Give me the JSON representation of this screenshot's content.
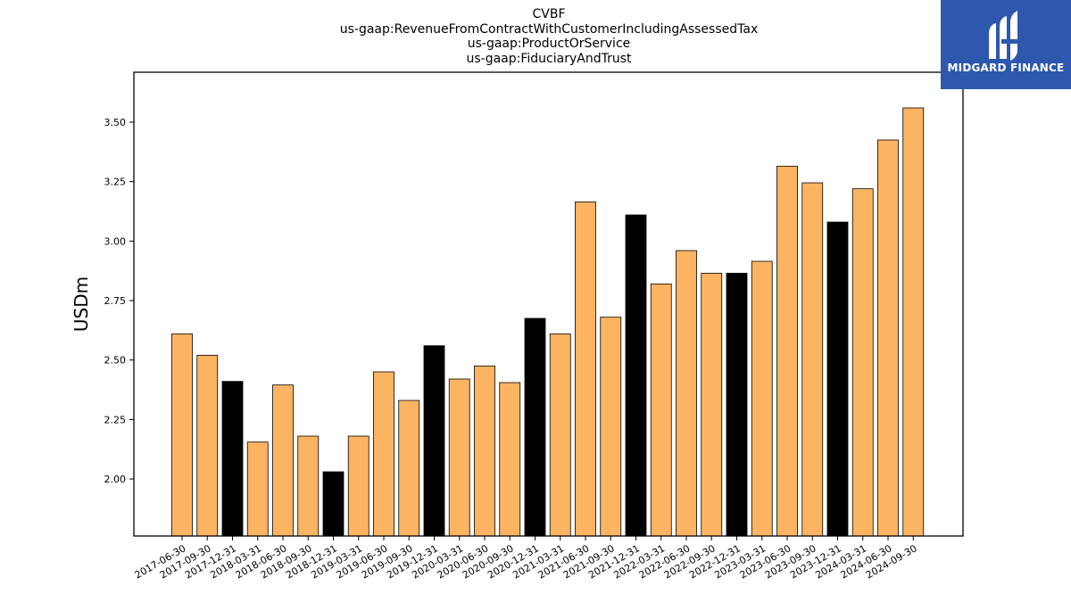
{
  "logo": {
    "text": "MIDGARD FINANCE",
    "background": "#2d58ad"
  },
  "chart_data": {
    "type": "bar",
    "title_lines": [
      "CVBF",
      "us-gaap:RevenueFromContractWithCustomerIncludingAssessedTax",
      "us-gaap:ProductOrService",
      "us-gaap:FiduciaryAndTrust"
    ],
    "ylabel": "USDm",
    "xlabel": "",
    "ylim": [
      1.76,
      3.71
    ],
    "yticks": [
      2.0,
      2.25,
      2.5,
      2.75,
      3.0,
      3.25,
      3.5
    ],
    "ytick_labels": [
      "2.00",
      "2.25",
      "2.50",
      "2.75",
      "3.00",
      "3.25",
      "3.50"
    ],
    "grid": false,
    "colors": {
      "regular": "#fdb462",
      "year_end": "#000000",
      "edge": "#000000"
    },
    "categories": [
      "2017-06-30",
      "2017-09-30",
      "2017-12-31",
      "2018-03-31",
      "2018-06-30",
      "2018-09-30",
      "2018-12-31",
      "2019-03-31",
      "2019-06-30",
      "2019-09-30",
      "2019-12-31",
      "2020-03-31",
      "2020-06-30",
      "2020-09-30",
      "2020-12-31",
      "2021-03-31",
      "2021-06-30",
      "2021-09-30",
      "2021-12-31",
      "2022-03-31",
      "2022-06-30",
      "2022-09-30",
      "2022-12-31",
      "2023-03-31",
      "2023-06-30",
      "2023-09-30",
      "2023-12-31",
      "2024-03-31",
      "2024-06-30",
      "2024-09-30"
    ],
    "values": [
      2.61,
      2.52,
      2.41,
      2.155,
      2.395,
      2.18,
      2.03,
      2.18,
      2.45,
      2.33,
      2.56,
      2.42,
      2.475,
      2.405,
      2.675,
      2.61,
      3.165,
      2.68,
      3.11,
      2.82,
      2.96,
      2.865,
      2.865,
      2.915,
      3.315,
      3.245,
      3.08,
      3.22,
      3.425,
      3.56
    ]
  }
}
